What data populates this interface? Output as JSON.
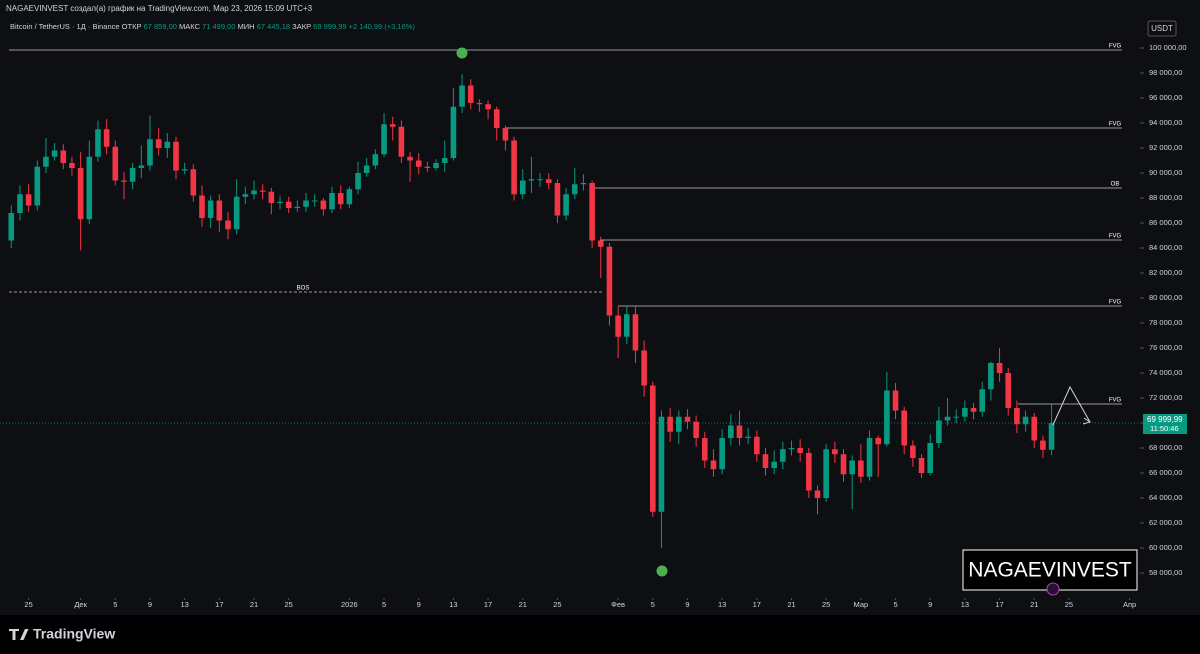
{
  "chart_data": {
    "type": "candlestick",
    "credit": "NAGAEVINVEST создал(а) график на TradingView.com, Мар 23, 2026 15:09 UTC+3",
    "symbol": "Bitcoin / TetherUS · 1Д · Binance",
    "legend_values": [
      {
        "label": "ОТКР",
        "value": "67 859,00"
      },
      {
        "label": "МАКС",
        "value": "71 499,00"
      },
      {
        "label": "МИН",
        "value": "67 445,18"
      },
      {
        "label": "ЗАКР",
        "value": "69 999,99"
      }
    ],
    "change": "+2 140,99 (+3,16%)",
    "currency": "USDT",
    "watermark": "NAGAEVINVEST",
    "brand": "TradingView",
    "up_color": "#089981",
    "down_color": "#f23645",
    "open": [
      84600,
      86800,
      88300,
      87400,
      90500,
      91300,
      91800,
      90800,
      90400,
      86300,
      91300,
      93500,
      92100,
      89400,
      89300,
      90400,
      90600,
      92700,
      92000,
      92500,
      90200,
      90300,
      88200,
      86400,
      87800,
      86200,
      85500,
      88100,
      88300,
      88600,
      88500,
      87600,
      87700,
      87200,
      87300,
      87800,
      87800,
      87100,
      88400,
      87500,
      88700,
      90000,
      90600,
      91500,
      93900,
      93700,
      91300,
      91000,
      90500,
      90400,
      90800,
      91200,
      95300,
      97000,
      95600,
      95500,
      95100,
      93600,
      92600,
      88300,
      89400,
      89500,
      89500,
      89200,
      86600,
      88300,
      89100,
      89200,
      84600,
      84100,
      78600,
      76900,
      78700,
      75800,
      73000,
      62900,
      70500,
      69300,
      70500,
      70100,
      68800,
      67000,
      66300,
      68800,
      69800,
      68800,
      68900,
      67500,
      66400,
      66900,
      67900,
      68000,
      67600,
      64600,
      64000,
      67900,
      67500,
      65900,
      67000,
      65700,
      68800,
      68300,
      72600,
      71000,
      68200,
      67200,
      66000,
      68400,
      70200,
      70500,
      70500,
      71200,
      70900,
      72700,
      74800,
      74000,
      71200,
      69900,
      70500,
      68600,
      67859
    ],
    "high": [
      87400,
      89000,
      89100,
      91000,
      92800,
      92400,
      92300,
      91300,
      91700,
      92600,
      94200,
      94300,
      92600,
      90100,
      90800,
      92200,
      94600,
      93600,
      93200,
      92900,
      90800,
      90700,
      89000,
      88200,
      88300,
      86900,
      89500,
      88900,
      89400,
      89100,
      88800,
      88200,
      88100,
      87800,
      88400,
      88300,
      88000,
      88900,
      89000,
      88900,
      90900,
      91200,
      91900,
      94800,
      94500,
      94200,
      91700,
      91600,
      90900,
      91100,
      92600,
      96800,
      97900,
      97500,
      95900,
      95800,
      95300,
      93800,
      92900,
      90300,
      91300,
      90000,
      90000,
      89500,
      88800,
      90400,
      89900,
      89400,
      84900,
      84400,
      79300,
      79400,
      79300,
      76600,
      73300,
      71000,
      71200,
      71000,
      71100,
      70600,
      69300,
      67900,
      69500,
      70700,
      71000,
      69600,
      69400,
      68000,
      67800,
      68500,
      68600,
      68700,
      68000,
      65000,
      68300,
      68500,
      67900,
      67400,
      68300,
      69400,
      69000,
      74100,
      73200,
      71300,
      68600,
      67500,
      69100,
      71300,
      72000,
      71100,
      71800,
      71600,
      73300,
      74900,
      76000,
      74400,
      71800,
      71000,
      70800,
      69000,
      71499
    ],
    "low": [
      84000,
      86200,
      86900,
      87000,
      90000,
      91000,
      90300,
      89800,
      83800,
      85900,
      90900,
      91500,
      89000,
      87900,
      88700,
      89600,
      90200,
      91400,
      91200,
      89500,
      89900,
      87700,
      85700,
      85600,
      85300,
      84700,
      85100,
      87500,
      87900,
      87900,
      86700,
      87100,
      86800,
      86900,
      86900,
      87300,
      86600,
      86800,
      87100,
      87200,
      88300,
      89700,
      90300,
      91300,
      92600,
      90800,
      89300,
      89900,
      90100,
      90200,
      90100,
      91000,
      94800,
      95100,
      94900,
      94300,
      92600,
      91800,
      87800,
      87900,
      88400,
      88900,
      88700,
      86000,
      86200,
      87900,
      88600,
      84000,
      81600,
      77800,
      75200,
      76300,
      74800,
      72100,
      62500,
      60000,
      68500,
      68300,
      69500,
      68100,
      66400,
      65700,
      65900,
      68200,
      68200,
      68300,
      66900,
      65800,
      65900,
      66300,
      67400,
      66900,
      64000,
      62700,
      63700,
      66800,
      65300,
      63100,
      65200,
      65400,
      65700,
      68100,
      70300,
      67500,
      66500,
      65600,
      65800,
      68000,
      69800,
      70000,
      70100,
      70300,
      70500,
      71800,
      73300,
      70600,
      69200,
      69300,
      68000,
      67200,
      67445.18
    ],
    "close": [
      86800,
      88300,
      87400,
      90500,
      91300,
      91800,
      90800,
      90400,
      86300,
      91300,
      93500,
      92100,
      89400,
      89300,
      90400,
      90600,
      92700,
      92000,
      92500,
      90200,
      90300,
      88200,
      86400,
      87800,
      86200,
      85500,
      88100,
      88300,
      88600,
      88500,
      87600,
      87700,
      87200,
      87300,
      87800,
      87800,
      87100,
      88400,
      87500,
      88700,
      90000,
      90600,
      91500,
      93900,
      93700,
      91300,
      91000,
      90500,
      90400,
      90800,
      91200,
      95300,
      97000,
      95600,
      95500,
      95100,
      93600,
      92600,
      88300,
      89400,
      89500,
      89500,
      89200,
      86600,
      88300,
      89100,
      89200,
      84600,
      84100,
      78600,
      76900,
      78700,
      75800,
      73000,
      62900,
      70500,
      69300,
      70500,
      70100,
      68800,
      67000,
      66300,
      68800,
      69800,
      68800,
      68900,
      67500,
      66400,
      66900,
      67900,
      68000,
      67600,
      64600,
      64000,
      67900,
      67500,
      65900,
      67000,
      65700,
      68800,
      68300,
      72600,
      71000,
      68200,
      67200,
      66000,
      68400,
      70200,
      70500,
      70500,
      71200,
      70900,
      72700,
      74800,
      74000,
      71200,
      69900,
      70500,
      68600,
      67859,
      69999.99
    ],
    "levels": [
      {
        "label": "FVG",
        "value": 99840
      },
      {
        "label": "FVG",
        "value": 93600
      },
      {
        "label": "OB",
        "value": 88800
      },
      {
        "label": "FVG",
        "value": 84640
      },
      {
        "label": "FVG",
        "value": 79360
      },
      {
        "label": "FVG",
        "value": 71520
      },
      {
        "label": "BOS",
        "value": 80480
      }
    ],
    "current_price": {
      "value": 69999.99,
      "label": "69 999,99"
    },
    "countdown": "11:50:46",
    "xlim": [
      -1.3,
      130.2
    ],
    "ylim": [
      54880,
      103840
    ],
    "xticks": [
      {
        "value": 2,
        "label": "25"
      },
      {
        "value": 8,
        "label": "Дек"
      },
      {
        "value": 12,
        "label": "5"
      },
      {
        "value": 16,
        "label": "9"
      },
      {
        "value": 20,
        "label": "13"
      },
      {
        "value": 24,
        "label": "17"
      },
      {
        "value": 28,
        "label": "21"
      },
      {
        "value": 32,
        "label": "25"
      },
      {
        "value": 39,
        "label": "2026"
      },
      {
        "value": 43,
        "label": "5"
      },
      {
        "value": 47,
        "label": "9"
      },
      {
        "value": 51,
        "label": "13"
      },
      {
        "value": 55,
        "label": "17"
      },
      {
        "value": 59,
        "label": "21"
      },
      {
        "value": 63,
        "label": "25"
      },
      {
        "value": 70,
        "label": "Фев"
      },
      {
        "value": 74,
        "label": "5"
      },
      {
        "value": 78,
        "label": "9"
      },
      {
        "value": 82,
        "label": "13"
      },
      {
        "value": 86,
        "label": "17"
      },
      {
        "value": 90,
        "label": "21"
      },
      {
        "value": 94,
        "label": "25"
      },
      {
        "value": 98,
        "label": "Мар"
      },
      {
        "value": 102,
        "label": "5"
      },
      {
        "value": 106,
        "label": "9"
      },
      {
        "value": 110,
        "label": "13"
      },
      {
        "value": 114,
        "label": "17"
      },
      {
        "value": 118,
        "label": "21"
      },
      {
        "value": 122,
        "label": "25"
      },
      {
        "value": 129,
        "label": "Апр"
      }
    ],
    "yticks": [
      {
        "value": 58000,
        "label": "58 000,00"
      },
      {
        "value": 60000,
        "label": "60 000,00"
      },
      {
        "value": 62000,
        "label": "62 000,00"
      },
      {
        "value": 64000,
        "label": "64 000,00"
      },
      {
        "value": 66000,
        "label": "66 000,00"
      },
      {
        "value": 68000,
        "label": "68 000,00"
      },
      {
        "value": 70000,
        "label": "70 000,00"
      },
      {
        "value": 72000,
        "label": "72 000,00"
      },
      {
        "value": 74000,
        "label": "74 000,00"
      },
      {
        "value": 76000,
        "label": "76 000,00"
      },
      {
        "value": 78000,
        "label": "78 000,00"
      },
      {
        "value": 80000,
        "label": "80 000,00"
      },
      {
        "value": 82000,
        "label": "82 000,00"
      },
      {
        "value": 84000,
        "label": "84 000,00"
      },
      {
        "value": 86000,
        "label": "86 000,00"
      },
      {
        "value": 88000,
        "label": "88 000,00"
      },
      {
        "value": 90000,
        "label": "90 000,00"
      },
      {
        "value": 92000,
        "label": "92 000,00"
      },
      {
        "value": 94000,
        "label": "94 000,00"
      },
      {
        "value": 96000,
        "label": "96 000,00"
      },
      {
        "value": 98000,
        "label": "98 000,00"
      },
      {
        "value": 100000,
        "label": "100 000,00"
      }
    ]
  }
}
